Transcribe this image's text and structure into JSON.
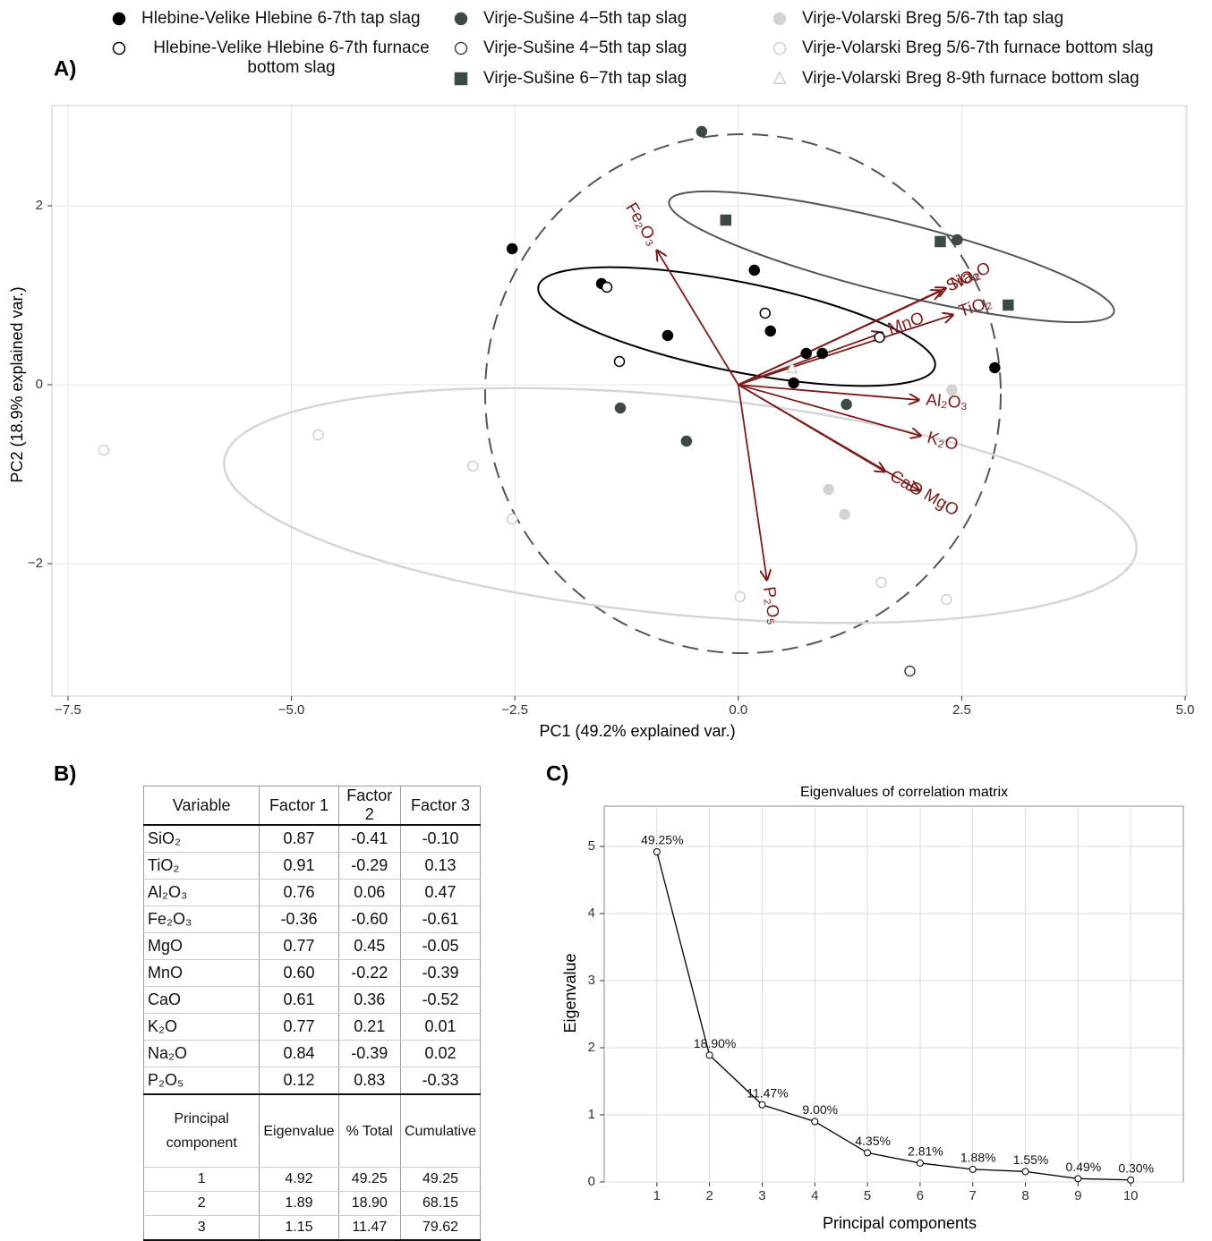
{
  "chart_data": [
    {
      "type": "scatter",
      "panel_label": "A)",
      "xlabel": "PC1 (49.2% explained var.)",
      "ylabel": "PC2 (18.9% explained var.)",
      "xlim": [
        -7.68,
        5.02
      ],
      "ylim": [
        -3.48,
        3.12
      ],
      "xticks": [
        {
          "value": -7.5,
          "label": "−7.5"
        },
        {
          "value": -5.0,
          "label": "−5.0"
        },
        {
          "value": -2.5,
          "label": "−2.5"
        },
        {
          "value": 0,
          "label": "0.0"
        },
        2.5,
        {
          "value": 5.0,
          "label": "5.0"
        }
      ],
      "yticks": [
        {
          "value": -2,
          "label": "−2"
        },
        0,
        2
      ],
      "grid": true,
      "series": [
        {
          "name": "Hlebine-Velike Hlebine 6-7th tap slag",
          "color": "#000000",
          "marker": "circle",
          "filled": true,
          "x": [
            -2.53,
            -1.53,
            -0.79,
            0.18,
            0.36,
            0.76,
            0.94,
            0.62,
            2.87
          ],
          "values": [
            1.52,
            1.13,
            0.55,
            1.28,
            0.6,
            0.35,
            0.35,
            0.02,
            0.19
          ]
        },
        {
          "name": "Hlebine-Velike Hlebine 6-7th furnace bottom slag",
          "color": "#000000",
          "marker": "circle",
          "filled": false,
          "x": [
            -1.47,
            -1.33,
            0.3,
            1.58
          ],
          "values": [
            1.09,
            0.26,
            0.8,
            0.53
          ]
        },
        {
          "name": "Virje-Sušine 4−5th tap slag",
          "color": "#3d4848",
          "marker": "circle",
          "filled": true,
          "x": [
            -0.41,
            2.45,
            -1.32,
            -0.58,
            1.21
          ],
          "values": [
            2.83,
            1.62,
            -0.26,
            -0.63,
            -0.22
          ]
        },
        {
          "name": "Virje-Sušine 4−5th tap slag",
          "color": "#3d4848",
          "marker": "circle",
          "filled": false,
          "x": [
            1.92
          ],
          "values": [
            -3.2
          ]
        },
        {
          "name": "Virje-Sušine 6−7th tap slag",
          "color": "#3d4848",
          "marker": "square",
          "filled": true,
          "x": [
            -0.14,
            2.26,
            3.02
          ],
          "values": [
            1.84,
            1.6,
            0.89
          ]
        },
        {
          "name": "Virje-Volarski Breg 5/6-7th tap slag",
          "color": "#d3d3d3",
          "marker": "circle",
          "filled": true,
          "x": [
            2.39,
            1.01,
            1.19
          ],
          "values": [
            -0.06,
            -1.17,
            -1.45
          ]
        },
        {
          "name": "Virje-Volarski Breg 5/6-7th furnace bottom slag",
          "color": "#cfcfcf",
          "marker": "circle",
          "filled": false,
          "x": [
            -7.1,
            -4.7,
            -2.97,
            -2.53,
            0.02,
            1.6,
            2.33
          ],
          "values": [
            -0.73,
            -0.56,
            -0.91,
            -1.5,
            -2.37,
            -2.21,
            -2.4
          ]
        },
        {
          "name": "Virje-Volarski Breg 8-9th furnace bottom slag",
          "color": "#cfcfcf",
          "marker": "triangle",
          "filled": false,
          "x": [
            0.6
          ],
          "values": [
            0.18
          ]
        }
      ],
      "arrows": [
        {
          "label": "Fe₂O₃",
          "x": -0.91,
          "y": 1.5
        },
        {
          "label": "SiO₂",
          "x": 2.27,
          "y": 1.05
        },
        {
          "label": "Na₂O",
          "x": 2.32,
          "y": 1.08
        },
        {
          "label": "MnO",
          "x": 1.61,
          "y": 0.58
        },
        {
          "label": "TiO₂",
          "x": 2.4,
          "y": 0.78
        },
        {
          "label": "Al₂O₃",
          "x": 2.02,
          "y": -0.17
        },
        {
          "label": "K₂O",
          "x": 2.04,
          "y": -0.57
        },
        {
          "label": "CaO",
          "x": 1.64,
          "y": -0.97
        },
        {
          "label": "MgO",
          "x": 2.02,
          "y": -1.18
        },
        {
          "label": "P₂O₅",
          "x": 0.32,
          "y": -2.18
        }
      ],
      "arrow_color": "#7b1c1c"
    },
    {
      "type": "line",
      "panel_label": "C)",
      "title": "Eigenvalues of correlation matrix",
      "xlabel": "Principal components",
      "ylabel": "Eigenvalue",
      "xlim": [
        0,
        11
      ],
      "ylim": [
        0,
        5.6
      ],
      "xticks": [
        1,
        2,
        3,
        4,
        5,
        6,
        7,
        8,
        9,
        10
      ],
      "yticks": [
        0,
        1,
        2,
        3,
        4,
        5
      ],
      "grid": true,
      "x": [
        1,
        2,
        3,
        4,
        5,
        6,
        7,
        8,
        9,
        10
      ],
      "values": [
        4.92,
        1.89,
        1.15,
        0.9,
        0.435,
        0.281,
        0.188,
        0.155,
        0.049,
        0.03
      ],
      "annotations": [
        "49.25%",
        "18.90%",
        "11.47%",
        "9.00%",
        "4.35%",
        "2.81%",
        "1.88%",
        "1.55%",
        "0.49%",
        "0.30%"
      ],
      "color": "#000000"
    }
  ],
  "table": {
    "label": "B)",
    "header": [
      "Variable",
      "Factor 1",
      "Factor 2",
      "Factor 3"
    ],
    "rows": [
      [
        "SiO₂",
        "0.87",
        "-0.41",
        "-0.10"
      ],
      [
        "TiO₂",
        "0.91",
        "-0.29",
        "0.13"
      ],
      [
        "Al₂O₃",
        "0.76",
        "0.06",
        "0.47"
      ],
      [
        "Fe₂O₃",
        "-0.36",
        "-0.60",
        "-0.61"
      ],
      [
        "MgO",
        "0.77",
        "0.45",
        "-0.05"
      ],
      [
        "MnO",
        "0.60",
        "-0.22",
        "-0.39"
      ],
      [
        "CaO",
        "0.61",
        "0.36",
        "-0.52"
      ],
      [
        "K₂O",
        "0.77",
        "0.21",
        "0.01"
      ],
      [
        "Na₂O",
        "0.84",
        "-0.39",
        "0.02"
      ],
      [
        "P₂O₅",
        "0.12",
        "0.83",
        "-0.33"
      ]
    ],
    "header2": [
      "Principal component",
      "Eigenvalue",
      "% Total",
      "Cumulative"
    ],
    "rows2": [
      [
        "1",
        "4.92",
        "49.25",
        "49.25"
      ],
      [
        "2",
        "1.89",
        "18.90",
        "68.15"
      ],
      [
        "3",
        "1.15",
        "11.47",
        "79.62"
      ]
    ]
  }
}
